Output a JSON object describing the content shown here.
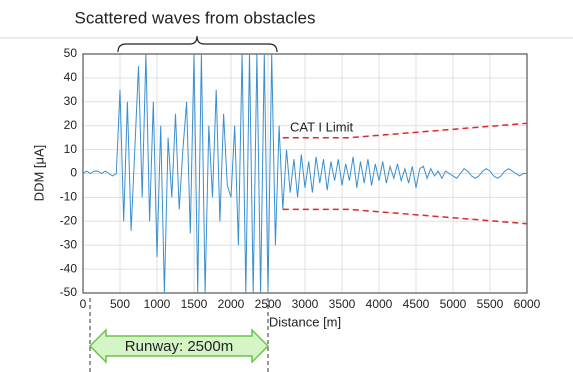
{
  "chart_data": {
    "type": "line",
    "title": "Scattered waves from obstacles",
    "xlabel": "Distance [m]",
    "ylabel": "DDM [μA]",
    "annotations": {
      "limit": "CAT I Limit",
      "runway": "Runway: 2500m"
    },
    "x": [
      0,
      50,
      100,
      150,
      200,
      250,
      300,
      350,
      400,
      450,
      500,
      550,
      600,
      650,
      700,
      750,
      800,
      850,
      900,
      950,
      1000,
      1050,
      1100,
      1150,
      1200,
      1250,
      1300,
      1350,
      1400,
      1450,
      1500,
      1550,
      1600,
      1650,
      1700,
      1750,
      1800,
      1850,
      1900,
      1950,
      2000,
      2050,
      2100,
      2150,
      2200,
      2250,
      2300,
      2350,
      2400,
      2450,
      2500,
      2550,
      2600,
      2650,
      2700,
      2750,
      2800,
      2850,
      2900,
      2950,
      3000,
      3050,
      3100,
      3150,
      3200,
      3250,
      3300,
      3350,
      3400,
      3450,
      3500,
      3550,
      3600,
      3650,
      3700,
      3750,
      3800,
      3850,
      3900,
      3950,
      4000,
      4050,
      4100,
      4150,
      4200,
      4250,
      4300,
      4350,
      4400,
      4450,
      4500,
      4550,
      4600,
      4650,
      4700,
      4750,
      4800,
      4850,
      4900,
      4950,
      5000,
      5050,
      5100,
      5150,
      5200,
      5250,
      5300,
      5350,
      5400,
      5450,
      5500,
      5550,
      5600,
      5650,
      5700,
      5750,
      5800,
      5850,
      5900,
      5950,
      6000
    ],
    "series": [
      {
        "color": "#3a8fd0",
        "values": [
          0,
          1,
          0,
          1,
          1,
          0,
          1,
          0,
          -1,
          0,
          35,
          -20,
          30,
          -24,
          10,
          45,
          -10,
          50,
          -20,
          30,
          -35,
          20,
          -50,
          15,
          -10,
          25,
          -15,
          10,
          30,
          -25,
          50,
          -50,
          50,
          -50,
          20,
          -10,
          35,
          -20,
          25,
          -5,
          -10,
          20,
          -30,
          50,
          -50,
          50,
          -50,
          50,
          -50,
          50,
          -50,
          50,
          -30,
          20,
          -15,
          10,
          -8,
          6,
          -10,
          8,
          -6,
          5,
          -8,
          7,
          -4,
          6,
          -7,
          5,
          -3,
          6,
          -5,
          4,
          -3,
          7,
          -6,
          5,
          -4,
          6,
          -5,
          4,
          -3,
          5,
          -4,
          3,
          -2,
          4,
          -3,
          2,
          -4,
          3,
          -6,
          2,
          3,
          -2,
          2,
          -1,
          1,
          -2,
          1,
          0,
          -1,
          -2,
          0,
          2,
          1,
          -1,
          -2,
          -1,
          1,
          2,
          1,
          -1,
          -2,
          -1,
          1,
          2,
          1,
          0,
          -1,
          0,
          0
        ]
      },
      {
        "color": "#e02828",
        "dashed": true,
        "x": [
          2700,
          3600,
          6000
        ],
        "values": [
          15,
          15,
          21
        ]
      },
      {
        "color": "#e02828",
        "dashed": true,
        "x": [
          2700,
          3600,
          6000
        ],
        "values": [
          -15,
          -15,
          -21
        ]
      }
    ],
    "xlim": [
      0,
      6000
    ],
    "xticks": [
      0,
      500,
      1000,
      1500,
      2000,
      2500,
      3000,
      3500,
      4000,
      4500,
      5000,
      5500,
      6000
    ],
    "ylim": [
      -50,
      50
    ],
    "yticks": [
      -50,
      -40,
      -30,
      -20,
      -10,
      0,
      10,
      20,
      30,
      40,
      50
    ],
    "grid": true
  }
}
